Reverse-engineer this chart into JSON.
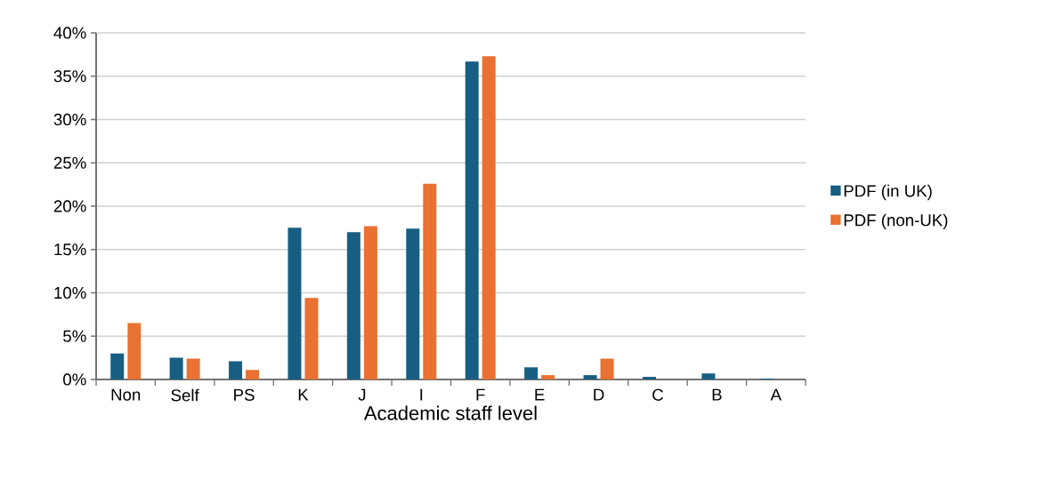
{
  "chart_data": {
    "type": "bar",
    "xlabel": "Academic staff level",
    "categories": [
      "Non",
      "Self",
      "PS",
      "K",
      "J",
      "I",
      "F",
      "E",
      "D",
      "C",
      "B",
      "A"
    ],
    "series": [
      {
        "name": "PDF (in UK)",
        "color": "#175e82",
        "values": [
          3.0,
          2.5,
          2.1,
          17.5,
          17.0,
          17.4,
          36.7,
          1.4,
          0.5,
          0.3,
          0.7,
          0.1
        ]
      },
      {
        "name": "PDF (non-UK)",
        "color": "#e97132",
        "values": [
          6.5,
          2.4,
          1.1,
          9.4,
          17.7,
          22.6,
          37.3,
          0.5,
          2.4,
          0,
          0,
          0
        ]
      }
    ],
    "ylim": [
      0,
      40
    ],
    "yticks": [
      {
        "value": 0,
        "label": "0%"
      },
      {
        "value": 5,
        "label": "5%"
      },
      {
        "value": 10,
        "label": "10%"
      },
      {
        "value": 15,
        "label": "15%"
      },
      {
        "value": 20,
        "label": "20%"
      },
      {
        "value": 25,
        "label": "25%"
      },
      {
        "value": 30,
        "label": "30%"
      },
      {
        "value": 35,
        "label": "35%"
      },
      {
        "value": 40,
        "label": "40%"
      }
    ],
    "grid": "y",
    "legend": "right"
  }
}
